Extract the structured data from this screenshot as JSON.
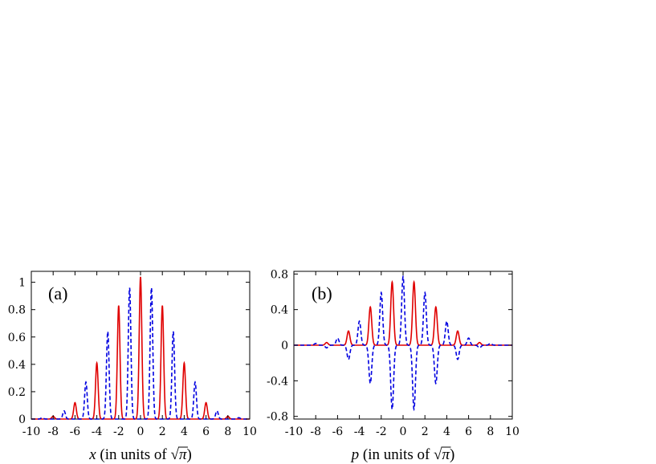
{
  "chart_data": [
    {
      "type": "line",
      "panel_label": "(a)",
      "xlabel_var": "x",
      "xlabel_rest": " (in units of ",
      "xlabel_close": ")",
      "xlabel_sqrt": "√",
      "xlabel_pi": "π",
      "xlim": [
        -10,
        10
      ],
      "ylim": [
        0,
        1.08
      ],
      "xticks": [
        -10,
        -8,
        -6,
        -4,
        -2,
        0,
        2,
        4,
        6,
        8,
        10
      ],
      "xtick_labels": [
        "-10",
        "-8",
        "-6",
        "-4",
        "-2",
        "0",
        "2",
        "4",
        "6",
        "8",
        "10"
      ],
      "yticks": [
        0,
        0.2,
        0.4,
        0.6,
        0.8,
        1
      ],
      "ytick_labels": [
        "0",
        "0.2",
        "0.4",
        "0.6",
        "0.8",
        "1"
      ],
      "series": [
        {
          "color": "#e00000",
          "style": "solid",
          "peak_width": 0.12,
          "peaks": [
            {
              "x": -8,
              "y": 0.02
            },
            {
              "x": -6,
              "y": 0.12
            },
            {
              "x": -4,
              "y": 0.41
            },
            {
              "x": -2,
              "y": 0.83
            },
            {
              "x": 0,
              "y": 1.04
            },
            {
              "x": 2,
              "y": 0.83
            },
            {
              "x": 4,
              "y": 0.41
            },
            {
              "x": 6,
              "y": 0.12
            },
            {
              "x": 8,
              "y": 0.02
            }
          ]
        },
        {
          "color": "#0000e0",
          "style": "dashed",
          "peak_width": 0.12,
          "peaks": [
            {
              "x": -9,
              "y": 0.01
            },
            {
              "x": -7,
              "y": 0.06
            },
            {
              "x": -5,
              "y": 0.27
            },
            {
              "x": -3,
              "y": 0.64
            },
            {
              "x": -1,
              "y": 0.96
            },
            {
              "x": 1,
              "y": 0.96
            },
            {
              "x": 3,
              "y": 0.64
            },
            {
              "x": 5,
              "y": 0.27
            },
            {
              "x": 7,
              "y": 0.06
            },
            {
              "x": 9,
              "y": 0.01
            }
          ]
        }
      ]
    },
    {
      "type": "line",
      "panel_label": "(b)",
      "xlabel_var": "p",
      "xlabel_rest": " (in units of ",
      "xlabel_close": ")",
      "xlabel_sqrt": "√",
      "xlabel_pi": "π",
      "xlim": [
        -10,
        10
      ],
      "ylim": [
        -0.83,
        0.83
      ],
      "xticks": [
        -10,
        -8,
        -6,
        -4,
        -2,
        0,
        2,
        4,
        6,
        8,
        10
      ],
      "xtick_labels": [
        "-10",
        "-8",
        "-6",
        "-4",
        "-2",
        "0",
        "2",
        "4",
        "6",
        "8",
        "10"
      ],
      "yticks": [
        -0.8,
        -0.4,
        0,
        0.4,
        0.8
      ],
      "ytick_labels": [
        "-0.8",
        "-0.4",
        "0",
        "0.4",
        "0.8"
      ],
      "series": [
        {
          "color": "#e00000",
          "style": "solid",
          "peak_width": 0.13,
          "peaks": [
            {
              "x": -7,
              "y": 0.03
            },
            {
              "x": -5,
              "y": 0.16
            },
            {
              "x": -3,
              "y": 0.43
            },
            {
              "x": -1,
              "y": 0.71
            },
            {
              "x": 1,
              "y": 0.71
            },
            {
              "x": 3,
              "y": 0.43
            },
            {
              "x": 5,
              "y": 0.16
            },
            {
              "x": 7,
              "y": 0.03
            }
          ]
        },
        {
          "color": "#0000e0",
          "style": "dashed",
          "peak_width": 0.13,
          "peaks": [
            {
              "x": -8,
              "y": 0.02
            },
            {
              "x": -7,
              "y": -0.03
            },
            {
              "x": -6,
              "y": 0.08
            },
            {
              "x": -5,
              "y": -0.16
            },
            {
              "x": -4,
              "y": 0.27
            },
            {
              "x": -3,
              "y": -0.43
            },
            {
              "x": -2,
              "y": 0.59
            },
            {
              "x": -1,
              "y": -0.72
            },
            {
              "x": 0,
              "y": 0.77
            },
            {
              "x": 1,
              "y": -0.72
            },
            {
              "x": 2,
              "y": 0.59
            },
            {
              "x": 3,
              "y": -0.43
            },
            {
              "x": 4,
              "y": 0.27
            },
            {
              "x": 5,
              "y": -0.16
            },
            {
              "x": 6,
              "y": 0.08
            },
            {
              "x": 7,
              "y": -0.03
            },
            {
              "x": 8,
              "y": 0.02
            }
          ]
        }
      ]
    }
  ]
}
